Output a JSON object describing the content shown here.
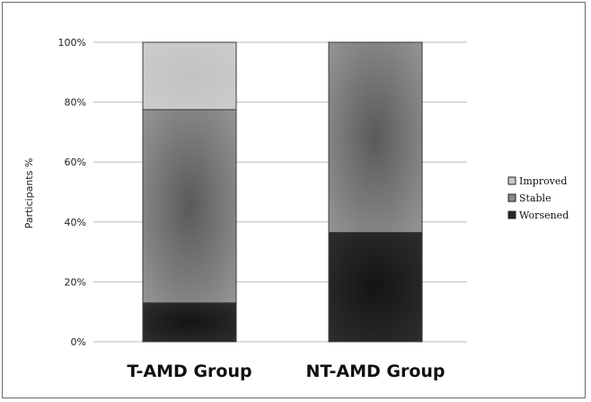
{
  "chart_data": {
    "type": "bar",
    "stacked": true,
    "categories": [
      "T-AMD Group",
      "NT-AMD Group"
    ],
    "series": [
      {
        "name": "Worsened",
        "values": [
          13,
          36.5
        ],
        "color": "#262626"
      },
      {
        "name": "Stable",
        "values": [
          64.5,
          63.5
        ],
        "color": "#8a8a8a"
      },
      {
        "name": "Improved",
        "values": [
          22.5,
          0
        ],
        "color": "#c8c8c8"
      }
    ],
    "ylabel": "Participants %",
    "ylim": [
      0,
      100
    ],
    "yticks": [
      0,
      20,
      40,
      60,
      80,
      100
    ],
    "ytick_labels": [
      "0%",
      "20%",
      "40%",
      "60%",
      "80%",
      "100%"
    ],
    "legend_order": [
      "Improved",
      "Stable",
      "Worsened"
    ],
    "legend_position": "right",
    "grid": true
  }
}
